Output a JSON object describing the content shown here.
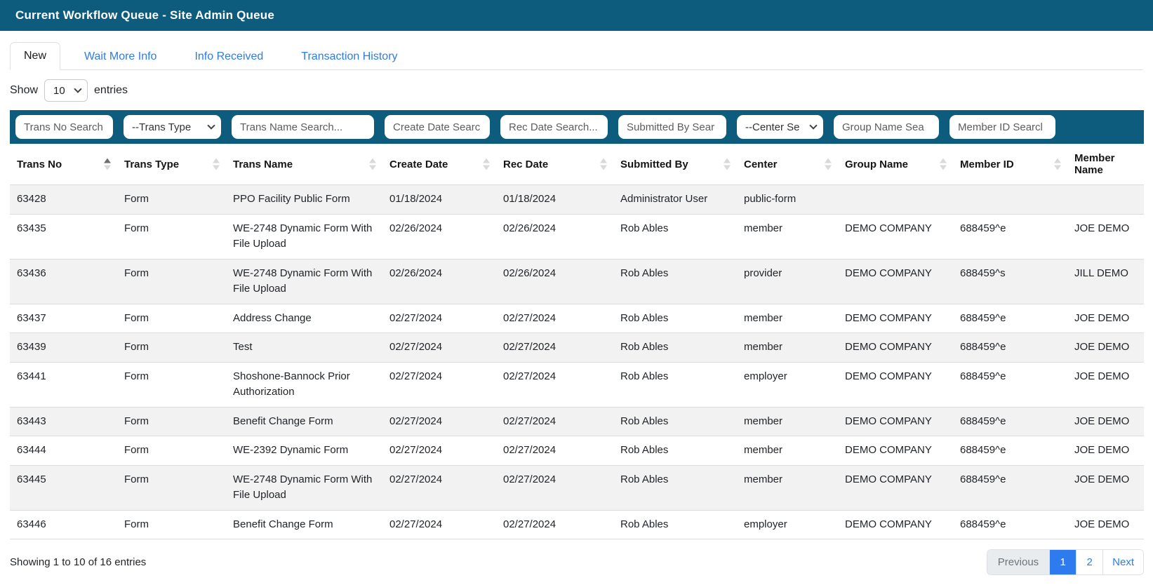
{
  "header": {
    "title": "Current Workflow Queue - Site Admin Queue"
  },
  "tabs": [
    {
      "label": "New",
      "active": true
    },
    {
      "label": "Wait More Info",
      "active": false
    },
    {
      "label": "Info Received",
      "active": false
    },
    {
      "label": "Transaction History",
      "active": false
    }
  ],
  "show_entries": {
    "prefix": "Show",
    "selected": "10",
    "suffix": "entries"
  },
  "filters": [
    {
      "type": "input",
      "name": "trans-no-search",
      "placeholder": "Trans No Search"
    },
    {
      "type": "select",
      "name": "trans-type-select",
      "value": "--Trans Type"
    },
    {
      "type": "input",
      "name": "trans-name-search",
      "placeholder": "Trans Name Search..."
    },
    {
      "type": "input",
      "name": "create-date-search",
      "placeholder": "Create Date Searc"
    },
    {
      "type": "input",
      "name": "rec-date-search",
      "placeholder": "Rec Date Search..."
    },
    {
      "type": "input",
      "name": "submitted-by-search",
      "placeholder": "Submitted By Sear"
    },
    {
      "type": "select",
      "name": "center-select",
      "value": "--Center Se"
    },
    {
      "type": "input",
      "name": "group-name-search",
      "placeholder": "Group Name Sea"
    },
    {
      "type": "input",
      "name": "member-id-search",
      "placeholder": "Member ID Searcl"
    }
  ],
  "table": {
    "columns": [
      {
        "label": "Trans No",
        "sort": "asc"
      },
      {
        "label": "Trans Type",
        "sort": "none"
      },
      {
        "label": "Trans Name",
        "sort": "none"
      },
      {
        "label": "Create Date",
        "sort": "none"
      },
      {
        "label": "Rec Date",
        "sort": "none"
      },
      {
        "label": "Submitted By",
        "sort": "none"
      },
      {
        "label": "Center",
        "sort": "none"
      },
      {
        "label": "Group Name",
        "sort": "none"
      },
      {
        "label": "Member ID",
        "sort": "none"
      },
      {
        "label": "Member Name",
        "sort": null
      }
    ],
    "rows": [
      [
        "63428",
        "Form",
        "PPO Facility Public Form",
        "01/18/2024",
        "01/18/2024",
        "Administrator User",
        "public-form",
        "",
        "",
        ""
      ],
      [
        "63435",
        "Form",
        "WE-2748 Dynamic Form With File Upload",
        "02/26/2024",
        "02/26/2024",
        "Rob Ables",
        "member",
        "DEMO COMPANY",
        "688459^e",
        "JOE DEMO"
      ],
      [
        "63436",
        "Form",
        "WE-2748 Dynamic Form With File Upload",
        "02/26/2024",
        "02/26/2024",
        "Rob Ables",
        "provider",
        "DEMO COMPANY",
        "688459^s",
        "JILL DEMO"
      ],
      [
        "63437",
        "Form",
        "Address Change",
        "02/27/2024",
        "02/27/2024",
        "Rob Ables",
        "member",
        "DEMO COMPANY",
        "688459^e",
        "JOE DEMO"
      ],
      [
        "63439",
        "Form",
        "Test",
        "02/27/2024",
        "02/27/2024",
        "Rob Ables",
        "member",
        "DEMO COMPANY",
        "688459^e",
        "JOE DEMO"
      ],
      [
        "63441",
        "Form",
        "Shoshone-Bannock Prior Authorization",
        "02/27/2024",
        "02/27/2024",
        "Rob Ables",
        "employer",
        "DEMO COMPANY",
        "688459^e",
        "JOE DEMO"
      ],
      [
        "63443",
        "Form",
        "Benefit Change Form",
        "02/27/2024",
        "02/27/2024",
        "Rob Ables",
        "member",
        "DEMO COMPANY",
        "688459^e",
        "JOE DEMO"
      ],
      [
        "63444",
        "Form",
        "WE-2392 Dynamic Form",
        "02/27/2024",
        "02/27/2024",
        "Rob Ables",
        "member",
        "DEMO COMPANY",
        "688459^e",
        "JOE DEMO"
      ],
      [
        "63445",
        "Form",
        "WE-2748 Dynamic Form With File Upload",
        "02/27/2024",
        "02/27/2024",
        "Rob Ables",
        "member",
        "DEMO COMPANY",
        "688459^e",
        "JOE DEMO"
      ],
      [
        "63446",
        "Form",
        "Benefit Change Form",
        "02/27/2024",
        "02/27/2024",
        "Rob Ables",
        "employer",
        "DEMO COMPANY",
        "688459^e",
        "JOE DEMO"
      ]
    ]
  },
  "footer": {
    "summary": "Showing 1 to 10 of 16 entries",
    "pagination": [
      {
        "label": "Previous",
        "state": "disabled"
      },
      {
        "label": "1",
        "state": "active"
      },
      {
        "label": "2",
        "state": "normal"
      },
      {
        "label": "Next",
        "state": "normal"
      }
    ]
  },
  "colors": {
    "header_teal": "#0d5c7d",
    "link_blue": "#2e7ce4",
    "active_page_blue": "#2e7bf0",
    "row_stripe": "#f2f2f2"
  }
}
